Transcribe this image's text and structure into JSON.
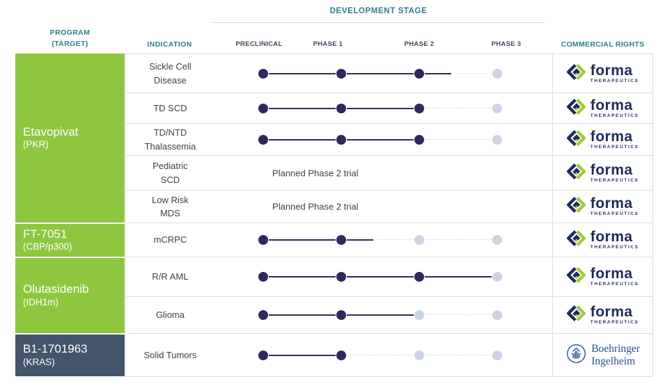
{
  "header": {
    "development_stage": "DEVELOPMENT STAGE",
    "program_line1": "PROGRAM",
    "program_line2": "(TARGET)",
    "indication": "INDICATION",
    "phases": [
      "PRECLINICAL",
      "PHASE 1",
      "PHASE 2",
      "PHASE 3"
    ],
    "commercial_rights": "COMMERCIAL RIGHTS"
  },
  "programs": [
    {
      "name": "Etavopivat",
      "target": "(PKR)",
      "color": "#8FC640"
    },
    {
      "name": "FT-7051",
      "target": "(CBP/p300)",
      "color": "#8FC640"
    },
    {
      "name": "Olutasidenib",
      "target": "(IDH1m)",
      "color": "#8FC640"
    },
    {
      "name": "B1-1701963",
      "target": "(KRAS)",
      "color": "#44546A"
    }
  ],
  "table": {
    "rows": [
      {
        "program": "Etavopivat",
        "indication_lines": [
          "Sickle Cell",
          "Disease"
        ],
        "dots": [
          "dark",
          "dark",
          "dark",
          "light"
        ],
        "segments": [
          "solid",
          "solid",
          "solid-dash"
        ],
        "logo": "forma"
      },
      {
        "program": "Etavopivat",
        "indication_lines": [
          "TD SCD"
        ],
        "dots": [
          "dark",
          "dark",
          "dark",
          "light"
        ],
        "segments": [
          "solid",
          "solid",
          "dash"
        ],
        "logo": "forma"
      },
      {
        "program": "Etavopivat",
        "indication_lines": [
          "TD/NTD",
          "Thalassemia"
        ],
        "dots": [
          "dark",
          "dark",
          "dark",
          "light"
        ],
        "segments": [
          "solid",
          "solid",
          "dash"
        ],
        "logo": "forma"
      },
      {
        "program": "Etavopivat",
        "indication_lines": [
          "Pediatric",
          "SCD"
        ],
        "planned_note": "Planned Phase 2 trial",
        "logo": "forma"
      },
      {
        "program": "Etavopivat",
        "indication_lines": [
          "Low Risk",
          "MDS"
        ],
        "planned_note": "Planned Phase 2 trial",
        "logo": "forma"
      },
      {
        "program": "FT-7051",
        "indication_lines": [
          "mCRPC"
        ],
        "dots": [
          "dark",
          "dark",
          "light",
          "light"
        ],
        "segments": [
          "solid",
          "solid-dash",
          "dash"
        ],
        "logo": "forma"
      },
      {
        "program": "Olutasidenib",
        "indication_lines": [
          "R/R AML"
        ],
        "dots": [
          "dark",
          "dark",
          "dark",
          "light"
        ],
        "segments": [
          "solid",
          "solid",
          "solid"
        ],
        "logo": "forma"
      },
      {
        "program": "Olutasidenib",
        "indication_lines": [
          "Glioma"
        ],
        "dots": [
          "dark",
          "dark",
          "light",
          "light"
        ],
        "segments": [
          "solid",
          "solid",
          "dash"
        ],
        "logo": "forma"
      },
      {
        "program": "B1-1701963",
        "indication_lines": [
          "Solid Tumors"
        ],
        "dots": [
          "dark",
          "dark",
          "light",
          "light"
        ],
        "segments": [
          "solid",
          "dash",
          "dash"
        ],
        "logo": "boehringer"
      }
    ]
  },
  "logos": {
    "forma": {
      "name": "forma",
      "sub": "THERAPEUTICS"
    },
    "boehringer": {
      "line1": "Boehringer",
      "line2": "Ingelheim"
    }
  },
  "colors": {
    "teal_header": "#2A7F8C",
    "program_green": "#8FC640",
    "program_slate": "#44546A",
    "dot_dark_navy": "#2B2A5E",
    "dot_light": "#CBD4E3",
    "dashed_line": "#D3DAE6",
    "row_border": "#DCDCDC",
    "forma_navy": "#1F2A5C",
    "forma_green": "#A2C93A",
    "boehringer_blue": "#234E8D",
    "text_dark": "#3F3F46"
  }
}
